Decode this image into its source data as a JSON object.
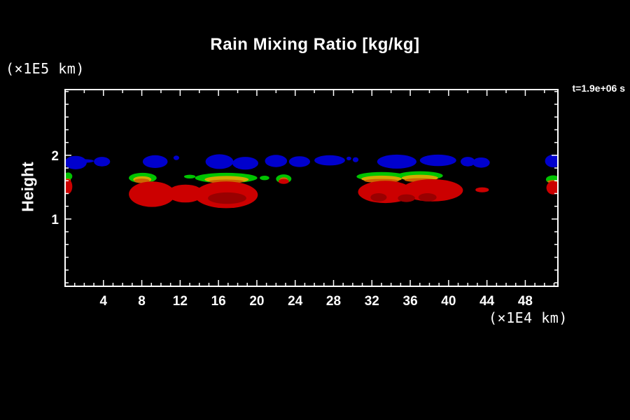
{
  "title": "Rain Mixing Ratio [kg/kg]",
  "time_label": "t=1.9e+06 s",
  "colors": {
    "background": "#000000",
    "foreground": "#FFFFFF"
  },
  "axes": {
    "x": {
      "unit_label": "(×1E4 km)",
      "range": [
        0,
        51.4
      ],
      "major_ticks": [
        4,
        8,
        12,
        16,
        20,
        24,
        28,
        32,
        36,
        40,
        44,
        48
      ],
      "minor_step_bottom": 1,
      "minor_step_top": 2
    },
    "y": {
      "label": "Height",
      "unit_label": "(×1E5 km)",
      "range": [
        -0.055,
        3.03
      ],
      "major_ticks": [
        1,
        2
      ],
      "minor_step": 0.2
    }
  },
  "chart_data": {
    "type": "heatmap",
    "title": "Rain Mixing Ratio [kg/kg]",
    "xlabel": "(×1E4 km)",
    "ylabel": "Height (×1E5 km)",
    "time_annotation": "t=1.9e+06 s",
    "x_range": [
      0,
      51.4
    ],
    "y_range": [
      -0.055,
      3.03
    ],
    "grid": false,
    "legend": "none",
    "levels": [
      {
        "name": "blue",
        "color": "#0000CD",
        "rank": 1
      },
      {
        "name": "green",
        "color": "#00C400",
        "rank": 2
      },
      {
        "name": "yellow",
        "color": "#D2AC00",
        "rank": 3
      },
      {
        "name": "orange",
        "color": "#CC6600",
        "rank": 4
      },
      {
        "name": "red",
        "color": "#CC0000",
        "rank": 5
      },
      {
        "name": "darkred",
        "color": "#990000",
        "rank": 6
      }
    ],
    "regions": [
      {
        "level": "blue",
        "x": 1.1,
        "h": 1.885,
        "rx": 1.15,
        "rh": 0.105
      },
      {
        "level": "blue",
        "x": 2.0,
        "h": 1.91,
        "rx": 1.0,
        "rh": 0.028
      },
      {
        "level": "blue",
        "x": 3.85,
        "h": 1.9,
        "rx": 0.85,
        "rh": 0.075
      },
      {
        "level": "blue",
        "x": 9.4,
        "h": 1.9,
        "rx": 1.3,
        "rh": 0.1
      },
      {
        "level": "blue",
        "x": 11.6,
        "h": 1.96,
        "rx": 0.3,
        "rh": 0.035
      },
      {
        "level": "blue",
        "x": 16.1,
        "h": 1.9,
        "rx": 1.45,
        "rh": 0.115
      },
      {
        "level": "blue",
        "x": 18.8,
        "h": 1.875,
        "rx": 1.35,
        "rh": 0.1
      },
      {
        "level": "blue",
        "x": 22.0,
        "h": 1.91,
        "rx": 1.15,
        "rh": 0.095
      },
      {
        "level": "blue",
        "x": 24.45,
        "h": 1.9,
        "rx": 1.1,
        "rh": 0.085
      },
      {
        "level": "blue",
        "x": 27.6,
        "h": 1.92,
        "rx": 1.6,
        "rh": 0.08
      },
      {
        "level": "blue",
        "x": 29.6,
        "h": 1.95,
        "rx": 0.25,
        "rh": 0.03
      },
      {
        "level": "blue",
        "x": 30.3,
        "h": 1.93,
        "rx": 0.3,
        "rh": 0.04
      },
      {
        "level": "blue",
        "x": 34.6,
        "h": 1.9,
        "rx": 2.05,
        "rh": 0.11
      },
      {
        "level": "blue",
        "x": 38.9,
        "h": 1.92,
        "rx": 1.9,
        "rh": 0.09
      },
      {
        "level": "blue",
        "x": 42.0,
        "h": 1.9,
        "rx": 0.75,
        "rh": 0.075
      },
      {
        "level": "blue",
        "x": 43.4,
        "h": 1.885,
        "rx": 0.9,
        "rh": 0.08
      },
      {
        "level": "blue",
        "x": 50.9,
        "h": 1.91,
        "rx": 0.85,
        "rh": 0.1
      },
      {
        "level": "green",
        "x": 0.3,
        "h": 1.67,
        "rx": 0.45,
        "rh": 0.06
      },
      {
        "level": "green",
        "x": 8.1,
        "h": 1.645,
        "rx": 1.45,
        "rh": 0.08
      },
      {
        "level": "green",
        "x": 13.0,
        "h": 1.665,
        "rx": 0.6,
        "rh": 0.03
      },
      {
        "level": "green",
        "x": 16.8,
        "h": 1.645,
        "rx": 3.25,
        "rh": 0.08
      },
      {
        "level": "green",
        "x": 20.8,
        "h": 1.645,
        "rx": 0.5,
        "rh": 0.035
      },
      {
        "level": "green",
        "x": 22.8,
        "h": 1.63,
        "rx": 0.8,
        "rh": 0.07
      },
      {
        "level": "green",
        "x": 33.0,
        "h": 1.667,
        "rx": 2.6,
        "rh": 0.07
      },
      {
        "level": "green",
        "x": 37.0,
        "h": 1.68,
        "rx": 2.4,
        "rh": 0.07
      },
      {
        "level": "green",
        "x": 50.9,
        "h": 1.62,
        "rx": 0.75,
        "rh": 0.065
      },
      {
        "level": "yellow",
        "x": 8.05,
        "h": 1.62,
        "rx": 0.95,
        "rh": 0.05
      },
      {
        "level": "yellow",
        "x": 16.85,
        "h": 1.62,
        "rx": 2.3,
        "rh": 0.055
      },
      {
        "level": "yellow",
        "x": 33.0,
        "h": 1.63,
        "rx": 2.1,
        "rh": 0.05
      },
      {
        "level": "yellow",
        "x": 37.0,
        "h": 1.645,
        "rx": 1.9,
        "rh": 0.05
      },
      {
        "level": "orange",
        "x": 0.25,
        "h": 1.61,
        "rx": 0.35,
        "rh": 0.025
      },
      {
        "level": "orange",
        "x": 8.0,
        "h": 1.6,
        "rx": 0.8,
        "rh": 0.035
      },
      {
        "level": "orange",
        "x": 16.8,
        "h": 1.59,
        "rx": 1.8,
        "rh": 0.03
      },
      {
        "level": "orange",
        "x": 22.8,
        "h": 1.61,
        "rx": 0.45,
        "rh": 0.045
      },
      {
        "level": "orange",
        "x": 33.0,
        "h": 1.6,
        "rx": 1.8,
        "rh": 0.03
      },
      {
        "level": "orange",
        "x": 37.0,
        "h": 1.61,
        "rx": 1.6,
        "rh": 0.03
      },
      {
        "level": "orange",
        "x": 50.9,
        "h": 1.59,
        "rx": 0.6,
        "rh": 0.022
      },
      {
        "level": "red",
        "x": 0.3,
        "h": 1.51,
        "rx": 0.45,
        "rh": 0.115
      },
      {
        "level": "red",
        "x": 9.05,
        "h": 1.39,
        "rx": 2.4,
        "rh": 0.2
      },
      {
        "level": "red",
        "x": 12.55,
        "h": 1.4,
        "rx": 1.9,
        "rh": 0.14
      },
      {
        "level": "red",
        "x": 16.8,
        "h": 1.38,
        "rx": 3.3,
        "rh": 0.21
      },
      {
        "level": "red",
        "x": 22.8,
        "h": 1.59,
        "rx": 0.55,
        "rh": 0.04
      },
      {
        "level": "red",
        "x": 33.4,
        "h": 1.425,
        "rx": 2.85,
        "rh": 0.175
      },
      {
        "level": "red",
        "x": 38.3,
        "h": 1.45,
        "rx": 3.2,
        "rh": 0.175
      },
      {
        "level": "red",
        "x": 43.5,
        "h": 1.458,
        "rx": 0.7,
        "rh": 0.04
      },
      {
        "level": "red",
        "x": 50.9,
        "h": 1.49,
        "rx": 0.7,
        "rh": 0.105
      },
      {
        "level": "darkred",
        "x": 16.9,
        "h": 1.327,
        "rx": 2.0,
        "rh": 0.09
      },
      {
        "level": "darkred",
        "x": 32.7,
        "h": 1.34,
        "rx": 0.85,
        "rh": 0.065
      },
      {
        "level": "darkred",
        "x": 35.6,
        "h": 1.327,
        "rx": 0.9,
        "rh": 0.06
      },
      {
        "level": "darkred",
        "x": 37.8,
        "h": 1.34,
        "rx": 0.95,
        "rh": 0.065
      }
    ]
  }
}
